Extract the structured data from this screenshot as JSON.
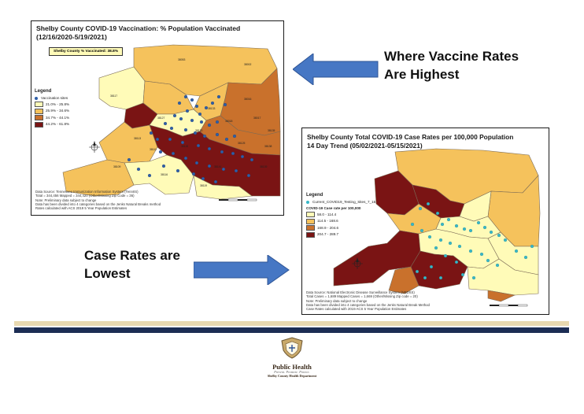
{
  "map1": {
    "title_line1": "Shelby County COVID-19 Vaccination: % Population Vaccinated",
    "title_line2": "(12/16/2020-5/19/2021)",
    "county_box": "Shelby County % Vaccinated: 38.8%",
    "legend_title": "Legend",
    "legend_items": [
      {
        "label": "Vaccination sites",
        "color": "#2f5fa8",
        "kind": "dot"
      },
      {
        "label": "21.0% - 25.8%",
        "color": "#fffbb8",
        "kind": "swatch"
      },
      {
        "label": "25.9% - 34.6%",
        "color": "#f5c25c",
        "kind": "swatch"
      },
      {
        "label": "34.7% - 44.1%",
        "color": "#c9712c",
        "kind": "swatch"
      },
      {
        "label": "44.2% - 61.8%",
        "color": "#7a1414",
        "kind": "swatch"
      }
    ],
    "source_lines": [
      "Data Source: Tennessee Immunization Information System (TennIIS)",
      "Total = 344,456 Mapped = 344,420 (Other/Missing Zip Code = 36)",
      "Note: Preliminary data subject to change",
      "Data has been divided into 4 categories based on the Jenks Natural Breaks method",
      "Rates calculated with ACS 2019 5 Year Population Estimates"
    ],
    "zip_labels": [
      "38053",
      "38002",
      "38016",
      "38017",
      "38018",
      "38117",
      "38118",
      "38125",
      "38141",
      "38109",
      "38116",
      "38113",
      "38127",
      "38133",
      "38120",
      "38111",
      "38138",
      "38139",
      "38119",
      "38135"
    ]
  },
  "map2": {
    "title_line1": "Shelby County Total COVID-19 Case Rates per 100,000 Population",
    "title_line2": "14 Day Trend (05/02/2021-05/15/2021)",
    "legend_title": "Legend",
    "testing_sites_label": "Current_COVID19_Testing_Sites_7_15",
    "legend_subtitle": "COVID-19 Case rate per 100,000",
    "legend_items": [
      {
        "label": "58.0 - 114.4",
        "color": "#fffbb8"
      },
      {
        "label": "114.5 - 168.6",
        "color": "#f5c25c"
      },
      {
        "label": "168.9 - 204.6",
        "color": "#c9712c"
      },
      {
        "label": "204.7 - 289.7",
        "color": "#7a1414"
      }
    ],
    "source_lines": [
      "Data Source: National Electronic Disease Surveillance System (NEDSS)",
      "Total Cases = 1,689 Mapped Cases = 1,669 (Other/Missing Zip code = 20)",
      "Note: Preliminary data subject to change",
      "Data has been divided into 4 categories based on the Jenks Natural Break Method",
      "Case Rates calculated with 2019 ACS 5 Year Population Estimates"
    ],
    "site_color": "#38b8c8"
  },
  "callouts": {
    "top_line1": "Where Vaccine Rates",
    "top_line2": "Are Highest",
    "bottom_line1": "Case Rates are",
    "bottom_line2": "Lowest",
    "arrow_color": "#4677c4"
  },
  "logo": {
    "name": "Public Health",
    "tagline": "Prevent. Promote. Protect.",
    "department": "Shelby County Health Department"
  },
  "colors": {
    "band_gold": "#e8d9b0",
    "band_navy": "#1c2d54"
  }
}
